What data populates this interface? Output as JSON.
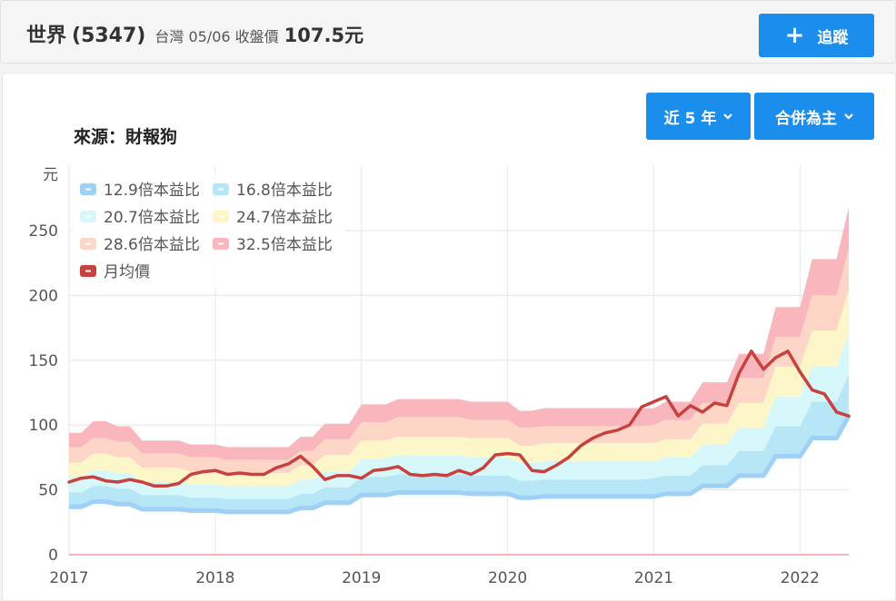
{
  "header": {
    "stock_name": "世界",
    "stock_code": "(5347)",
    "market_date_label": "台灣 05/06 收盤價",
    "close_price": "107.5元",
    "follow_label": "追蹤"
  },
  "panel": {
    "source_label": "來源：財報狗",
    "range_label": "近 5 年",
    "mode_label": "合併為主"
  },
  "colors": {
    "accent": "#1a8ded",
    "price_line": "#c9413f",
    "band_12_9": "#9fd0f5",
    "band_16_8": "#b7e6f6",
    "band_20_7": "#d6f8fa",
    "band_24_7": "#fdf6c9",
    "band_28_6": "#fdd6c8",
    "band_32_5": "#f9b7bd"
  },
  "chart_data": {
    "type": "area",
    "ylabel": "元",
    "ylim": [
      0,
      270
    ],
    "yticks": [
      0,
      50,
      100,
      150,
      200,
      250
    ],
    "xticks": [
      "2017",
      "2018",
      "2019",
      "2020",
      "2021",
      "2022"
    ],
    "grid": true,
    "legend_position": "top-left",
    "x": [
      "2017-01",
      "2017-02",
      "2017-03",
      "2017-04",
      "2017-05",
      "2017-06",
      "2017-07",
      "2017-08",
      "2017-09",
      "2017-10",
      "2017-11",
      "2017-12",
      "2018-01",
      "2018-02",
      "2018-03",
      "2018-04",
      "2018-05",
      "2018-06",
      "2018-07",
      "2018-08",
      "2018-09",
      "2018-10",
      "2018-11",
      "2018-12",
      "2019-01",
      "2019-02",
      "2019-03",
      "2019-04",
      "2019-05",
      "2019-06",
      "2019-07",
      "2019-08",
      "2019-09",
      "2019-10",
      "2019-11",
      "2019-12",
      "2020-01",
      "2020-02",
      "2020-03",
      "2020-04",
      "2020-05",
      "2020-06",
      "2020-07",
      "2020-08",
      "2020-09",
      "2020-10",
      "2020-11",
      "2020-12",
      "2021-01",
      "2021-02",
      "2021-03",
      "2021-04",
      "2021-05",
      "2021-06",
      "2021-07",
      "2021-08",
      "2021-09",
      "2021-10",
      "2021-11",
      "2021-12",
      "2022-01",
      "2022-02",
      "2022-03",
      "2022-04",
      "2022-05"
    ],
    "series": [
      {
        "name": "12.9倍本益比",
        "values": [
          37,
          37,
          41,
          41,
          39,
          39,
          35,
          35,
          35,
          35,
          34,
          34,
          34,
          33,
          33,
          33,
          33,
          33,
          33,
          36,
          36,
          40,
          40,
          40,
          46,
          46,
          46,
          48,
          48,
          48,
          48,
          48,
          48,
          47,
          47,
          47,
          47,
          44,
          44,
          45,
          45,
          45,
          45,
          45,
          45,
          45,
          45,
          45,
          45,
          47,
          47,
          47,
          53,
          53,
          53,
          61,
          61,
          61,
          76,
          76,
          76,
          90,
          90,
          90,
          107
        ]
      },
      {
        "name": "16.8倍本益比",
        "values": [
          48,
          48,
          53,
          53,
          51,
          51,
          46,
          46,
          46,
          46,
          44,
          44,
          44,
          43,
          43,
          43,
          43,
          43,
          43,
          47,
          47,
          52,
          52,
          52,
          60,
          60,
          60,
          62,
          62,
          62,
          62,
          62,
          62,
          61,
          61,
          61,
          61,
          57,
          57,
          58,
          58,
          58,
          58,
          58,
          58,
          58,
          58,
          58,
          59,
          61,
          61,
          61,
          69,
          69,
          69,
          80,
          80,
          80,
          99,
          99,
          99,
          118,
          118,
          118,
          139
        ]
      },
      {
        "name": "20.7倍本益比",
        "values": [
          60,
          60,
          65,
          65,
          63,
          63,
          56,
          56,
          56,
          56,
          54,
          54,
          54,
          53,
          53,
          53,
          53,
          53,
          53,
          58,
          58,
          64,
          64,
          64,
          74,
          74,
          74,
          77,
          77,
          77,
          77,
          77,
          77,
          75,
          75,
          75,
          75,
          71,
          71,
          72,
          72,
          72,
          72,
          72,
          72,
          72,
          72,
          72,
          72,
          75,
          75,
          75,
          85,
          85,
          85,
          98,
          98,
          98,
          122,
          122,
          122,
          145,
          145,
          145,
          171
        ]
      },
      {
        "name": "24.7倍本益比",
        "values": [
          71,
          71,
          78,
          78,
          75,
          75,
          67,
          67,
          67,
          67,
          64,
          64,
          64,
          63,
          63,
          63,
          63,
          63,
          63,
          69,
          69,
          77,
          77,
          77,
          88,
          88,
          88,
          91,
          91,
          91,
          91,
          91,
          91,
          90,
          90,
          90,
          90,
          84,
          84,
          86,
          86,
          86,
          86,
          86,
          86,
          86,
          86,
          86,
          86,
          89,
          89,
          89,
          101,
          101,
          101,
          117,
          117,
          117,
          145,
          145,
          145,
          173,
          173,
          173,
          204
        ]
      },
      {
        "name": "28.6倍本益比",
        "values": [
          83,
          83,
          90,
          90,
          87,
          87,
          78,
          78,
          78,
          78,
          75,
          75,
          75,
          73,
          73,
          73,
          73,
          73,
          73,
          80,
          80,
          89,
          89,
          89,
          102,
          102,
          102,
          106,
          106,
          106,
          106,
          106,
          106,
          104,
          104,
          104,
          104,
          98,
          98,
          99,
          99,
          99,
          99,
          99,
          99,
          99,
          99,
          99,
          100,
          104,
          104,
          104,
          117,
          117,
          117,
          136,
          136,
          136,
          168,
          168,
          168,
          200,
          200,
          200,
          236
        ]
      },
      {
        "name": "32.5倍本益比",
        "values": [
          94,
          94,
          103,
          103,
          99,
          99,
          88,
          88,
          88,
          88,
          85,
          85,
          85,
          83,
          83,
          83,
          83,
          83,
          83,
          91,
          91,
          101,
          101,
          101,
          116,
          116,
          116,
          120,
          120,
          120,
          120,
          120,
          120,
          118,
          118,
          118,
          118,
          111,
          111,
          113,
          113,
          113,
          113,
          113,
          113,
          113,
          113,
          113,
          113,
          118,
          118,
          118,
          133,
          133,
          133,
          155,
          155,
          155,
          191,
          191,
          191,
          228,
          228,
          228,
          268
        ]
      },
      {
        "name": "月均價",
        "values": [
          56,
          59,
          60,
          57,
          56,
          58,
          56,
          53,
          53,
          55,
          62,
          64,
          65,
          62,
          63,
          62,
          62,
          67,
          70,
          76,
          68,
          58,
          61,
          61,
          59,
          65,
          66,
          68,
          62,
          61,
          62,
          61,
          65,
          62,
          67,
          77,
          78,
          77,
          65,
          64,
          69,
          75,
          84,
          90,
          94,
          96,
          100,
          114,
          118,
          122,
          107,
          115,
          110,
          117,
          115,
          140,
          157,
          143,
          152,
          157,
          141,
          127,
          124,
          110,
          107
        ]
      }
    ]
  },
  "legend_items": [
    {
      "label": "12.9倍本益比",
      "color": "#9fd0f5"
    },
    {
      "label": "16.8倍本益比",
      "color": "#b7e6f6"
    },
    {
      "label": "20.7倍本益比",
      "color": "#d6f8fa"
    },
    {
      "label": "24.7倍本益比",
      "color": "#fdf6c9"
    },
    {
      "label": "28.6倍本益比",
      "color": "#fdd6c8"
    },
    {
      "label": "32.5倍本益比",
      "color": "#f9b7bd"
    },
    {
      "label": "月均價",
      "color": "#c9413f"
    }
  ]
}
